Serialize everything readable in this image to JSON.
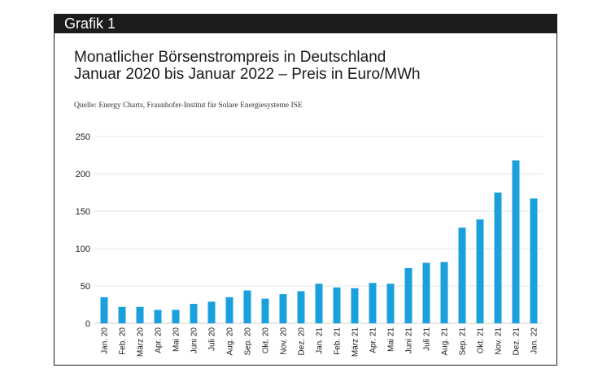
{
  "header": {
    "label": "Grafik 1"
  },
  "title_line1": "Monatlicher Börsenstrompreis in Deutschland",
  "title_line2": "Januar 2020 bis Januar 2022 – Preis in Euro/MWh",
  "source": "Quelle: Energy Charts, Fraunhofer-Institut für Solare Energiesysteme ISE",
  "colors": {
    "bar": "#1aa0dc",
    "grid": "#e6e6e6",
    "header": "#1c1c1c"
  },
  "chart_data": {
    "type": "bar",
    "title": "Monatlicher Börsenstrompreis in Deutschland Januar 2020 bis Januar 2022 – Preis in Euro/MWh",
    "xlabel": "",
    "ylabel": "",
    "ylim": [
      0,
      250
    ],
    "yticks": [
      0,
      50,
      100,
      150,
      200,
      250
    ],
    "grid": true,
    "categories": [
      "Jan. 20",
      "Feb. 20",
      "März 20",
      "Apr. 20",
      "Mai 20",
      "Juni 20",
      "Juli 20",
      "Aug. 20",
      "Sep. 20",
      "Okt. 20",
      "Nov. 20",
      "Dez. 20",
      "Jan. 21",
      "Feb. 21",
      "März 21",
      "Apr. 21",
      "Mai 21",
      "Juni 21",
      "Juli 21",
      "Aug. 21",
      "Sep. 21",
      "Okt. 21",
      "Nov. 21",
      "Dez. 21",
      "Jan. 22"
    ],
    "values": [
      35,
      22,
      22,
      18,
      18,
      26,
      29,
      35,
      44,
      33,
      39,
      43,
      53,
      48,
      47,
      54,
      53,
      74,
      81,
      82,
      128,
      139,
      175,
      218,
      167
    ]
  }
}
